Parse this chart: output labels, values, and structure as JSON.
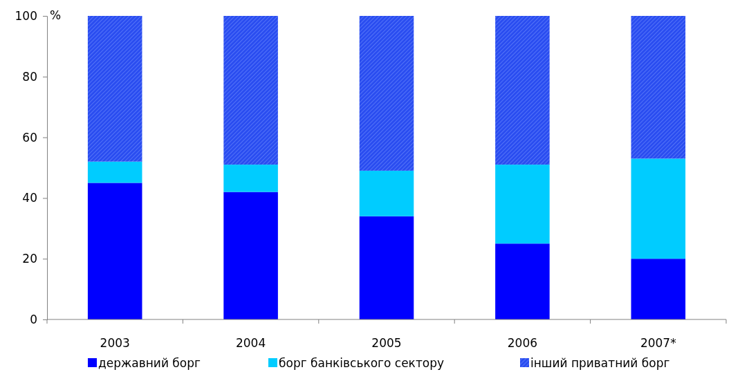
{
  "chart_data": {
    "type": "bar",
    "stacked": true,
    "ylabel": "%",
    "categories": [
      "2003",
      "2004",
      "2005",
      "2006",
      "2007*"
    ],
    "series": [
      {
        "name": "державний борг",
        "color": "#0000ff",
        "values": [
          45,
          42,
          34,
          25,
          20
        ]
      },
      {
        "name": "борг банківського сектору",
        "color": "#00ccff",
        "values": [
          7,
          9,
          15,
          26,
          33
        ]
      },
      {
        "name": "інший приватний борг",
        "color": "#2a4df0",
        "values": [
          48,
          49,
          51,
          49,
          47
        ]
      }
    ],
    "ylim": [
      0,
      100
    ],
    "yticks": [
      0,
      20,
      40,
      60,
      80,
      100
    ],
    "grid": false,
    "legend": "bottom"
  }
}
